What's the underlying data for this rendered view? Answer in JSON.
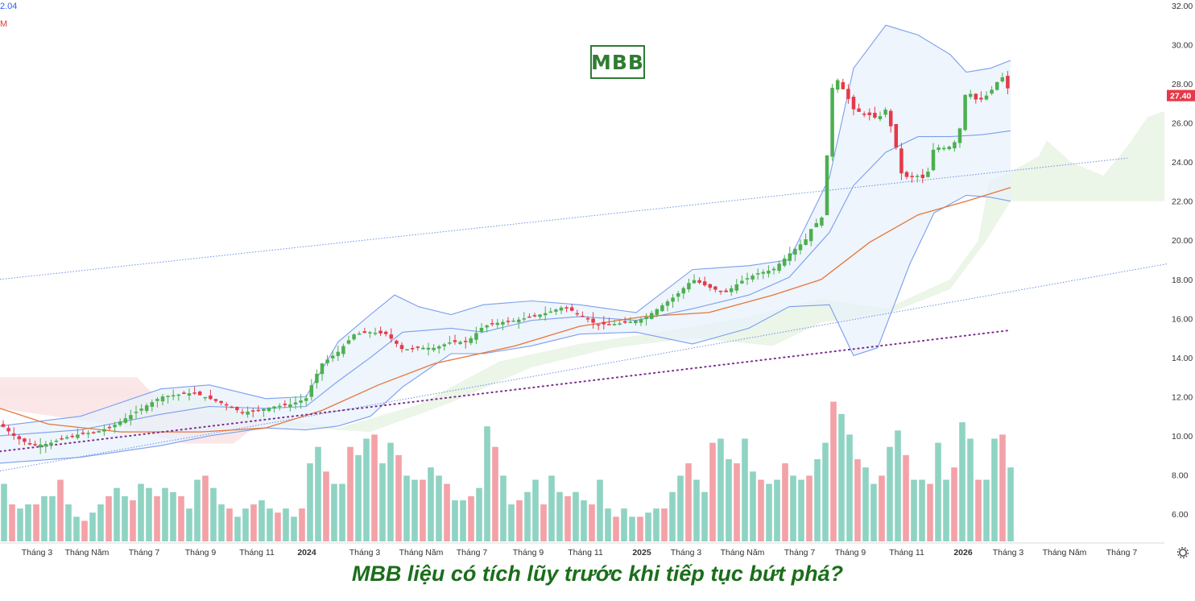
{
  "ticker": "MBB",
  "headline": "MBB liệu có tích lũy trước khi tiếp tục bứt phá?",
  "legend_top": "2.04",
  "legend_second": "M",
  "colors": {
    "up": "#4caf50",
    "down": "#e53949",
    "vol_up": "#8fd3c3",
    "vol_down": "#f3a2a8",
    "band": "#7b9ef0",
    "ma": "#e8743b",
    "price_tag": "#e53949"
  },
  "icons": {
    "settings": "gear-icon"
  },
  "chart_data": {
    "type": "candlestick",
    "title": "",
    "ylim": [
      4.6,
      32.0
    ],
    "y_ticks": [
      "32.00",
      "30.00",
      "28.00",
      "26.00",
      "24.00",
      "22.00",
      "20.00",
      "18.00",
      "16.00",
      "14.00",
      "12.00",
      "10.00",
      "8.00",
      "6.00"
    ],
    "x_ticks": [
      "Tháng 3",
      "Tháng Năm",
      "Tháng 7",
      "Tháng 9",
      "Tháng 11",
      "2024",
      "Tháng 3",
      "Tháng Năm",
      "Tháng 7",
      "Tháng 9",
      "Tháng 11",
      "2025",
      "Tháng 3",
      "Tháng Năm",
      "Tháng 7",
      "Tháng 9",
      "Tháng 11",
      "2026",
      "Tháng 3",
      "Tháng Năm",
      "Tháng 7"
    ],
    "last_price": "27.40",
    "path": [
      [
        0,
        10.6
      ],
      [
        20,
        9.9
      ],
      [
        40,
        9.5
      ],
      [
        60,
        9.6
      ],
      [
        80,
        9.9
      ],
      [
        100,
        10.1
      ],
      [
        120,
        10.2
      ],
      [
        140,
        10.5
      ],
      [
        160,
        11.0
      ],
      [
        180,
        11.5
      ],
      [
        200,
        12.0
      ],
      [
        220,
        12.1
      ],
      [
        240,
        12.2
      ],
      [
        260,
        11.9
      ],
      [
        280,
        11.6
      ],
      [
        300,
        11.2
      ],
      [
        320,
        11.3
      ],
      [
        340,
        11.5
      ],
      [
        360,
        11.6
      ],
      [
        380,
        11.9
      ],
      [
        390,
        12.9
      ],
      [
        400,
        13.7
      ],
      [
        420,
        14.3
      ],
      [
        440,
        15.2
      ],
      [
        460,
        15.3
      ],
      [
        480,
        15.2
      ],
      [
        500,
        14.4
      ],
      [
        520,
        14.5
      ],
      [
        540,
        14.5
      ],
      [
        560,
        14.8
      ],
      [
        580,
        14.8
      ],
      [
        600,
        15.6
      ],
      [
        620,
        15.8
      ],
      [
        640,
        15.9
      ],
      [
        660,
        16.1
      ],
      [
        680,
        16.3
      ],
      [
        700,
        16.6
      ],
      [
        720,
        16.2
      ],
      [
        740,
        15.7
      ],
      [
        760,
        15.7
      ],
      [
        780,
        15.8
      ],
      [
        800,
        16.0
      ],
      [
        820,
        16.6
      ],
      [
        840,
        17.2
      ],
      [
        860,
        18.0
      ],
      [
        880,
        17.6
      ],
      [
        900,
        17.3
      ],
      [
        920,
        17.9
      ],
      [
        940,
        18.3
      ],
      [
        960,
        18.5
      ],
      [
        980,
        19.3
      ],
      [
        1000,
        20.0
      ],
      [
        1010,
        20.8
      ],
      [
        1020,
        21.0
      ],
      [
        1025,
        23.0
      ],
      [
        1032,
        27.7
      ],
      [
        1040,
        28.2
      ],
      [
        1050,
        27.5
      ],
      [
        1060,
        26.7
      ],
      [
        1070,
        26.5
      ],
      [
        1080,
        26.4
      ],
      [
        1090,
        26.2
      ],
      [
        1100,
        26.7
      ],
      [
        1110,
        25.3
      ],
      [
        1120,
        23.3
      ],
      [
        1130,
        23.2
      ],
      [
        1140,
        23.3
      ],
      [
        1150,
        23.1
      ],
      [
        1160,
        24.8
      ],
      [
        1170,
        24.7
      ],
      [
        1180,
        24.8
      ],
      [
        1190,
        25.2
      ],
      [
        1200,
        27.8
      ],
      [
        1210,
        27.2
      ],
      [
        1220,
        27.2
      ],
      [
        1230,
        27.6
      ],
      [
        1240,
        28.2
      ],
      [
        1247,
        28.4
      ],
      [
        1254,
        27.4
      ]
    ],
    "candle_width": 4.5,
    "bollinger_upper": [
      [
        0,
        10.5
      ],
      [
        100,
        11.0
      ],
      [
        200,
        12.4
      ],
      [
        260,
        12.6
      ],
      [
        330,
        11.9
      ],
      [
        380,
        12.0
      ],
      [
        420,
        14.8
      ],
      [
        460,
        16.2
      ],
      [
        490,
        17.2
      ],
      [
        520,
        16.6
      ],
      [
        560,
        16.2
      ],
      [
        600,
        16.7
      ],
      [
        660,
        16.9
      ],
      [
        720,
        16.7
      ],
      [
        790,
        16.3
      ],
      [
        860,
        18.5
      ],
      [
        930,
        18.7
      ],
      [
        980,
        19.0
      ],
      [
        1030,
        23.2
      ],
      [
        1060,
        28.8
      ],
      [
        1100,
        31.0
      ],
      [
        1140,
        30.5
      ],
      [
        1180,
        29.5
      ],
      [
        1200,
        28.6
      ],
      [
        1230,
        28.8
      ],
      [
        1255,
        29.2
      ]
    ],
    "bollinger_mid": [
      [
        0,
        10.0
      ],
      [
        100,
        10.3
      ],
      [
        200,
        11.1
      ],
      [
        260,
        11.5
      ],
      [
        330,
        11.4
      ],
      [
        380,
        11.5
      ],
      [
        420,
        12.8
      ],
      [
        460,
        14.0
      ],
      [
        500,
        15.3
      ],
      [
        560,
        15.5
      ],
      [
        600,
        15.3
      ],
      [
        660,
        15.9
      ],
      [
        720,
        16.1
      ],
      [
        790,
        15.9
      ],
      [
        860,
        16.5
      ],
      [
        930,
        17.2
      ],
      [
        980,
        18.1
      ],
      [
        1030,
        20.4
      ],
      [
        1060,
        22.8
      ],
      [
        1100,
        24.5
      ],
      [
        1140,
        25.3
      ],
      [
        1180,
        25.3
      ],
      [
        1220,
        25.4
      ],
      [
        1255,
        25.6
      ]
    ],
    "bollinger_lower": [
      [
        0,
        8.6
      ],
      [
        100,
        8.9
      ],
      [
        200,
        9.5
      ],
      [
        260,
        10.0
      ],
      [
        330,
        10.4
      ],
      [
        380,
        10.3
      ],
      [
        420,
        10.5
      ],
      [
        460,
        11.0
      ],
      [
        500,
        12.5
      ],
      [
        560,
        14.2
      ],
      [
        600,
        14.2
      ],
      [
        660,
        14.6
      ],
      [
        720,
        15.2
      ],
      [
        790,
        15.3
      ],
      [
        860,
        14.7
      ],
      [
        930,
        15.5
      ],
      [
        980,
        16.6
      ],
      [
        1030,
        16.7
      ],
      [
        1060,
        14.1
      ],
      [
        1090,
        14.5
      ],
      [
        1130,
        18.8
      ],
      [
        1160,
        21.4
      ],
      [
        1200,
        22.3
      ],
      [
        1230,
        22.2
      ],
      [
        1255,
        22.0
      ]
    ],
    "ma": [
      [
        0,
        11.4
      ],
      [
        60,
        10.6
      ],
      [
        150,
        10.2
      ],
      [
        250,
        10.2
      ],
      [
        330,
        10.4
      ],
      [
        400,
        11.3
      ],
      [
        470,
        12.6
      ],
      [
        540,
        13.7
      ],
      [
        640,
        14.6
      ],
      [
        720,
        15.6
      ],
      [
        800,
        16.1
      ],
      [
        880,
        16.3
      ],
      [
        960,
        17.2
      ],
      [
        1020,
        18.0
      ],
      [
        1080,
        19.9
      ],
      [
        1140,
        21.3
      ],
      [
        1200,
        22.0
      ],
      [
        1255,
        22.7
      ]
    ],
    "channel_upper": [
      [
        0,
        18.0
      ],
      [
        1400,
        24.2
      ]
    ],
    "channel_lower": [
      [
        0,
        8.2
      ],
      [
        1450,
        18.8
      ]
    ],
    "dotted_trend": [
      [
        0,
        9.2
      ],
      [
        1255,
        15.4
      ]
    ],
    "volume": [
      [
        5,
        1.4
      ],
      [
        15,
        0.9
      ],
      [
        25,
        0.8
      ],
      [
        35,
        0.9
      ],
      [
        45,
        0.9
      ],
      [
        55,
        1.1
      ],
      [
        65,
        1.1
      ],
      [
        75,
        1.5
      ],
      [
        85,
        0.9
      ],
      [
        95,
        0.6
      ],
      [
        105,
        0.5
      ],
      [
        115,
        0.7
      ],
      [
        125,
        0.9
      ],
      [
        135,
        1.1
      ],
      [
        145,
        1.3
      ],
      [
        155,
        1.1
      ],
      [
        165,
        1.0
      ],
      [
        175,
        1.4
      ],
      [
        185,
        1.3
      ],
      [
        195,
        1.1
      ],
      [
        205,
        1.3
      ],
      [
        215,
        1.2
      ],
      [
        225,
        1.1
      ],
      [
        235,
        0.8
      ],
      [
        245,
        1.5
      ],
      [
        255,
        1.6
      ],
      [
        265,
        1.3
      ],
      [
        275,
        0.9
      ],
      [
        285,
        0.8
      ],
      [
        295,
        0.6
      ],
      [
        305,
        0.8
      ],
      [
        315,
        0.9
      ],
      [
        325,
        1.0
      ],
      [
        335,
        0.8
      ],
      [
        345,
        0.7
      ],
      [
        355,
        0.8
      ],
      [
        365,
        0.6
      ],
      [
        375,
        0.8
      ],
      [
        385,
        1.9
      ],
      [
        395,
        2.3
      ],
      [
        405,
        1.7
      ],
      [
        415,
        1.4
      ],
      [
        425,
        1.4
      ],
      [
        435,
        2.3
      ],
      [
        445,
        2.1
      ],
      [
        455,
        2.5
      ],
      [
        465,
        2.6
      ],
      [
        475,
        1.9
      ],
      [
        485,
        2.4
      ],
      [
        495,
        2.1
      ],
      [
        505,
        1.6
      ],
      [
        515,
        1.5
      ],
      [
        525,
        1.5
      ],
      [
        535,
        1.8
      ],
      [
        545,
        1.6
      ],
      [
        555,
        1.4
      ],
      [
        565,
        1.0
      ],
      [
        575,
        1.0
      ],
      [
        585,
        1.1
      ],
      [
        595,
        1.3
      ],
      [
        605,
        2.8
      ],
      [
        615,
        2.3
      ],
      [
        625,
        1.6
      ],
      [
        635,
        0.9
      ],
      [
        645,
        1.0
      ],
      [
        655,
        1.2
      ],
      [
        665,
        1.5
      ],
      [
        675,
        0.9
      ],
      [
        685,
        1.6
      ],
      [
        695,
        1.2
      ],
      [
        705,
        1.1
      ],
      [
        715,
        1.2
      ],
      [
        725,
        1.0
      ],
      [
        735,
        0.9
      ],
      [
        745,
        1.5
      ],
      [
        755,
        0.8
      ],
      [
        765,
        0.6
      ],
      [
        775,
        0.8
      ],
      [
        785,
        0.6
      ],
      [
        795,
        0.6
      ],
      [
        805,
        0.7
      ],
      [
        815,
        0.8
      ],
      [
        825,
        0.8
      ],
      [
        835,
        1.2
      ],
      [
        845,
        1.6
      ],
      [
        855,
        1.9
      ],
      [
        865,
        1.5
      ],
      [
        875,
        1.2
      ],
      [
        885,
        2.4
      ],
      [
        895,
        2.5
      ],
      [
        905,
        2.0
      ],
      [
        915,
        1.9
      ],
      [
        925,
        2.5
      ],
      [
        935,
        1.7
      ],
      [
        945,
        1.5
      ],
      [
        955,
        1.4
      ],
      [
        965,
        1.5
      ],
      [
        975,
        1.9
      ],
      [
        985,
        1.6
      ],
      [
        995,
        1.5
      ],
      [
        1005,
        1.6
      ],
      [
        1015,
        2.0
      ],
      [
        1025,
        2.4
      ],
      [
        1035,
        3.4
      ],
      [
        1045,
        3.1
      ],
      [
        1055,
        2.6
      ],
      [
        1065,
        2.0
      ],
      [
        1075,
        1.8
      ],
      [
        1085,
        1.4
      ],
      [
        1095,
        1.6
      ],
      [
        1105,
        2.3
      ],
      [
        1115,
        2.7
      ],
      [
        1125,
        2.1
      ],
      [
        1135,
        1.5
      ],
      [
        1145,
        1.5
      ],
      [
        1155,
        1.4
      ],
      [
        1165,
        2.4
      ],
      [
        1175,
        1.5
      ],
      [
        1185,
        1.8
      ],
      [
        1195,
        2.9
      ],
      [
        1205,
        2.5
      ],
      [
        1215,
        1.5
      ],
      [
        1225,
        1.5
      ],
      [
        1235,
        2.5
      ],
      [
        1245,
        2.6
      ],
      [
        1255,
        1.8
      ]
    ]
  }
}
